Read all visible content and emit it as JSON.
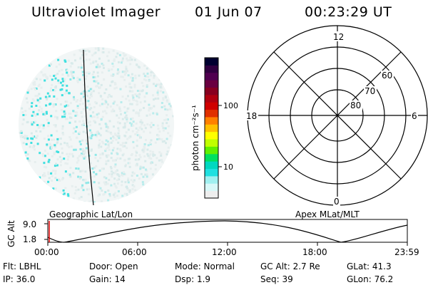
{
  "header": {
    "title": "Ultraviolet Imager",
    "date": "01 Jun 07",
    "time": "00:23:29 UT"
  },
  "colorbar": {
    "unit_label": "photon cm⁻²s⁻¹",
    "ticks": [
      "100",
      "10"
    ],
    "colors": [
      "#000030",
      "#300040",
      "#500050",
      "#6a0040",
      "#880020",
      "#b00010",
      "#d00000",
      "#e03000",
      "#ff8000",
      "#ffc000",
      "#ffff00",
      "#c0ff00",
      "#60f000",
      "#00e060",
      "#00d8c0",
      "#20e0e0",
      "#a0f0f0",
      "#d8f8f8",
      "#eeeeee"
    ]
  },
  "polar": {
    "mlt_labels": [
      "12",
      "18",
      "6",
      "0"
    ],
    "lat_labels": [
      "60",
      "70",
      "80"
    ]
  },
  "labels": {
    "geo": "Geographic Lat/Lon",
    "apex": "Apex MLat/MLT"
  },
  "altitude_plot": {
    "axis_label": "GC Alt",
    "y_ticks": [
      "9.0",
      "1.8"
    ],
    "x_ticks": [
      "00:00",
      "06:00",
      "12:00",
      "18:00",
      "23:59"
    ]
  },
  "info": {
    "flt": "Flt: LBHL",
    "ip": "IP: 36.0",
    "door": "Door: Open",
    "gain": "Gain: 14",
    "mode": "Mode: Normal",
    "dsp": "Dsp:     1.9",
    "gcalt": "GC Alt: 2.7 Re",
    "seq": "Seq: 39",
    "glat": "GLat:   41.3",
    "glon": "GLon:   76.2"
  }
}
